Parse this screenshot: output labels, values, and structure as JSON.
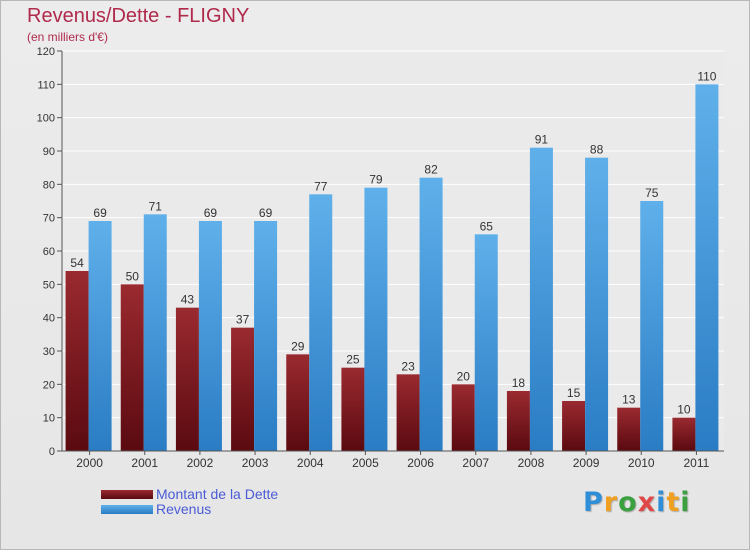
{
  "title": "Revenus/Dette - FLIGNY",
  "subtitle": "(en milliers d'€)",
  "logo": {
    "text": "Proxiti",
    "colors": [
      "#2e8fd8",
      "#f0a020",
      "#3aa040",
      "#e04848",
      "#2e8fd8",
      "#f0a020",
      "#3aa040"
    ]
  },
  "chart_data": {
    "type": "bar",
    "categories": [
      "2000",
      "2001",
      "2002",
      "2003",
      "2004",
      "2005",
      "2006",
      "2007",
      "2008",
      "2009",
      "2010",
      "2011"
    ],
    "series": [
      {
        "name": "Montant de la Dette",
        "color": "#7a1a1f",
        "values": [
          54,
          50,
          43,
          37,
          29,
          25,
          23,
          20,
          18,
          15,
          13,
          10
        ]
      },
      {
        "name": "Revenus",
        "color": "#4fa3e3",
        "values": [
          69,
          71,
          69,
          69,
          77,
          79,
          82,
          65,
          91,
          88,
          75,
          110
        ]
      }
    ],
    "ylim": [
      0,
      120
    ],
    "yticks": [
      0,
      10,
      20,
      30,
      40,
      50,
      60,
      70,
      80,
      90,
      100,
      110,
      120
    ],
    "grid": true,
    "legend": "bottom-left"
  }
}
